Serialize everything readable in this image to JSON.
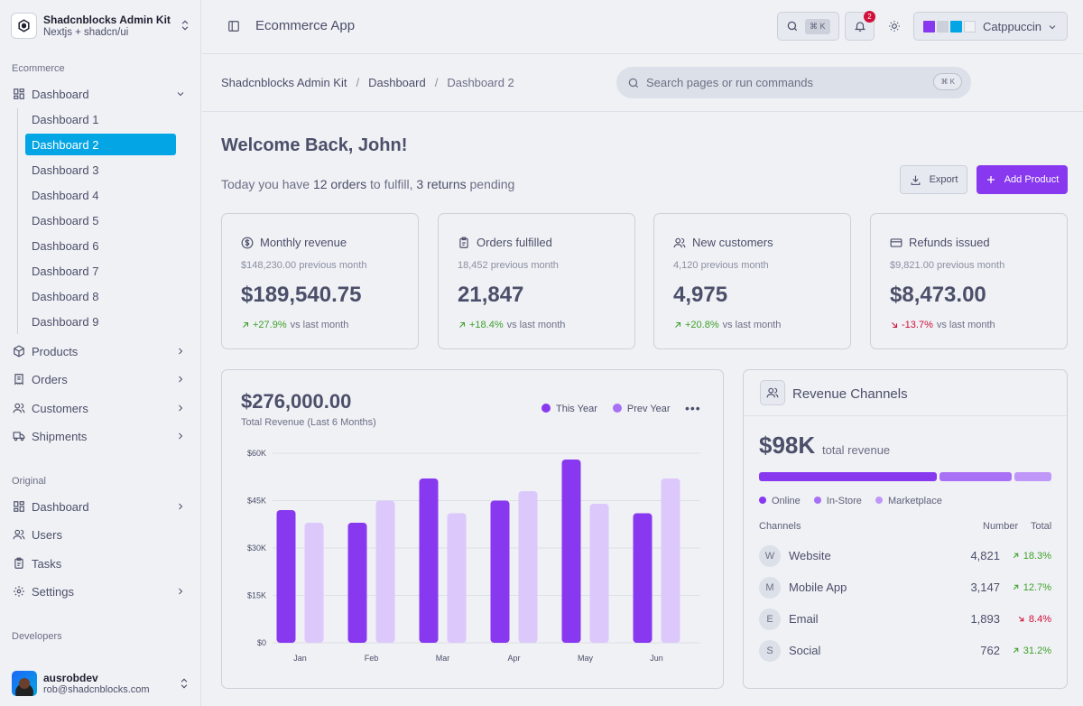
{
  "brand": {
    "title": "Shadcnblocks Admin Kit",
    "subtitle": "Nextjs + shadcn/ui"
  },
  "sidebar": {
    "section_ecommerce": "Ecommerce",
    "dashboard_label": "Dashboard",
    "sub_items": [
      "Dashboard 1",
      "Dashboard 2",
      "Dashboard 3",
      "Dashboard 4",
      "Dashboard 5",
      "Dashboard 6",
      "Dashboard 7",
      "Dashboard 8",
      "Dashboard 9"
    ],
    "active_sub": "Dashboard 2",
    "ecommerce_items": [
      {
        "label": "Products",
        "icon": "box-icon"
      },
      {
        "label": "Orders",
        "icon": "receipt-icon"
      },
      {
        "label": "Customers",
        "icon": "users-icon"
      },
      {
        "label": "Shipments",
        "icon": "truck-icon"
      }
    ],
    "section_original": "Original",
    "original_items": [
      {
        "label": "Dashboard",
        "icon": "layout-dashboard-icon"
      },
      {
        "label": "Users",
        "icon": "users-icon"
      },
      {
        "label": "Tasks",
        "icon": "clipboard-icon"
      },
      {
        "label": "Settings",
        "icon": "gear-icon"
      }
    ],
    "section_developers": "Developers"
  },
  "user": {
    "name": "ausrobdev",
    "email": "rob@shadcnblocks.com"
  },
  "topbar": {
    "app_title": "Ecommerce App",
    "search_shortcut": "⌘ K",
    "notification_count": "2",
    "theme_name": "Catppuccin",
    "theme_swatches": [
      "#8839ef",
      "#ccd0da",
      "#04a5e5",
      "#eff1f5"
    ]
  },
  "breadcrumb": [
    "Shadcnblocks Admin Kit",
    "Dashboard",
    "Dashboard 2"
  ],
  "command_search": {
    "placeholder": "Search pages or run commands",
    "shortcut": "⌘ K"
  },
  "welcome": {
    "title": "Welcome Back, John!",
    "prefix": "Today you have ",
    "orders": "12 orders",
    "middle": " to fulfill, ",
    "returns": "3 returns",
    "suffix": " pending"
  },
  "actions": {
    "export": "Export",
    "add_product": "Add Product"
  },
  "kpis": [
    {
      "title": "Monthly revenue",
      "previous": "$148,230.00 previous month",
      "value": "$189,540.75",
      "change": "+27.9%",
      "trend": "up",
      "suffix": "vs last month"
    },
    {
      "title": "Orders fulfilled",
      "previous": "18,452 previous month",
      "value": "21,847",
      "change": "+18.4%",
      "trend": "up",
      "suffix": "vs last month"
    },
    {
      "title": "New customers",
      "previous": "4,120 previous month",
      "value": "4,975",
      "change": "+20.8%",
      "trend": "up",
      "suffix": "vs last month"
    },
    {
      "title": "Refunds issued",
      "previous": "$9,821.00 previous month",
      "value": "$8,473.00",
      "change": "-13.7%",
      "trend": "down",
      "suffix": "vs last month"
    }
  ],
  "revenue_chart": {
    "total": "$276,000.00",
    "subtitle": "Total Revenue (Last 6 Months)",
    "legend_this_year": "This Year",
    "legend_prev_year": "Prev Year",
    "more": "•••"
  },
  "chart_data": {
    "type": "bar",
    "title": "Total Revenue (Last 6 Months)",
    "categories": [
      "Jan",
      "Feb",
      "Mar",
      "Apr",
      "May",
      "Jun"
    ],
    "series": [
      {
        "name": "This Year",
        "color": "#8839ef",
        "values": [
          42000,
          38000,
          52000,
          45000,
          58000,
          41000
        ]
      },
      {
        "name": "Prev Year",
        "color": "#dcc8fb",
        "values": [
          38000,
          45000,
          41000,
          48000,
          44000,
          52000
        ]
      }
    ],
    "yticks": [
      "$0",
      "$15K",
      "$30K",
      "$45K",
      "$60K"
    ],
    "ytick_values": [
      0,
      15000,
      30000,
      45000,
      60000
    ],
    "ylim": [
      0,
      60000
    ],
    "grid": true
  },
  "revenue_channels": {
    "title": "Revenue Channels",
    "total": "$98K",
    "total_label": "total revenue",
    "segments": [
      {
        "name": "Online",
        "share": 0.62,
        "color": "#8839ef"
      },
      {
        "name": "In-Store",
        "share": 0.25,
        "color": "#a870f5"
      },
      {
        "name": "Marketplace",
        "share": 0.13,
        "color": "#bf97f8"
      }
    ],
    "col_channels": "Channels",
    "col_number": "Number",
    "col_total": "Total",
    "rows": [
      {
        "initial": "W",
        "name": "Website",
        "number": "4,821",
        "pct": "18.3%",
        "trend": "up"
      },
      {
        "initial": "M",
        "name": "Mobile App",
        "number": "3,147",
        "pct": "12.7%",
        "trend": "up"
      },
      {
        "initial": "E",
        "name": "Email",
        "number": "1,893",
        "pct": "8.4%",
        "trend": "down"
      },
      {
        "initial": "S",
        "name": "Social",
        "number": "762",
        "pct": "31.2%",
        "trend": "up"
      }
    ]
  }
}
